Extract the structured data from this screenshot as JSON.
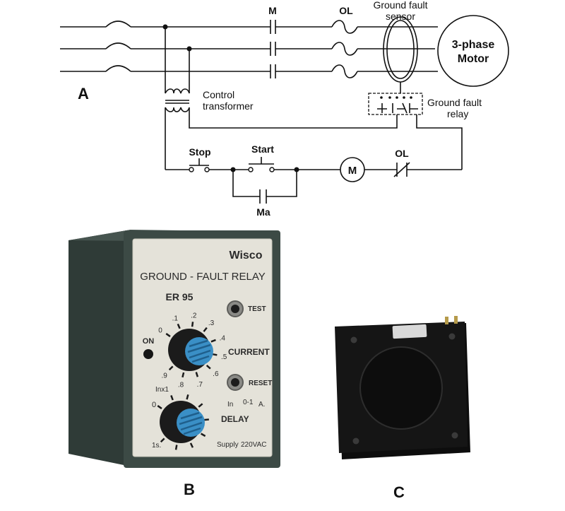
{
  "figure_labels": {
    "a": "A",
    "b": "B",
    "c": "C"
  },
  "schematic": {
    "contactor": "M",
    "overload": "OL",
    "sensor_line1": "Ground fault",
    "sensor_line2": "sensor",
    "motor_line1": "3-phase",
    "motor_line2": "Motor",
    "transformer_line1": "Control",
    "transformer_line2": "transformer",
    "relay_line1": "Ground fault",
    "relay_line2": "relay",
    "stop": "Stop",
    "start": "Start",
    "motor_coil": "M",
    "ol_contact": "OL",
    "aux_contact": "Ma"
  },
  "relay_device": {
    "brand": "Wisco",
    "title": "GROUND - FAULT RELAY",
    "model": "ER 95",
    "test": "TEST",
    "reset": "RESET",
    "on": "ON",
    "current": "CURRENT",
    "delay": "DELAY",
    "inx1": "Inx1",
    "in_range": "In",
    "range_value": "0-1",
    "unit_a": "A.",
    "supply": "Supply",
    "voltage": "220VAC",
    "seconds": "1s.",
    "current_scale": [
      "0",
      ".1",
      ".2",
      ".3",
      ".4",
      ".5",
      ".6",
      ".7",
      ".8",
      ".9"
    ],
    "delay_zero": "0",
    "colors": {
      "housing": "#3c4a45",
      "faceplate": "#e4e2d9",
      "knob_cap": "#3a8fc6"
    }
  }
}
